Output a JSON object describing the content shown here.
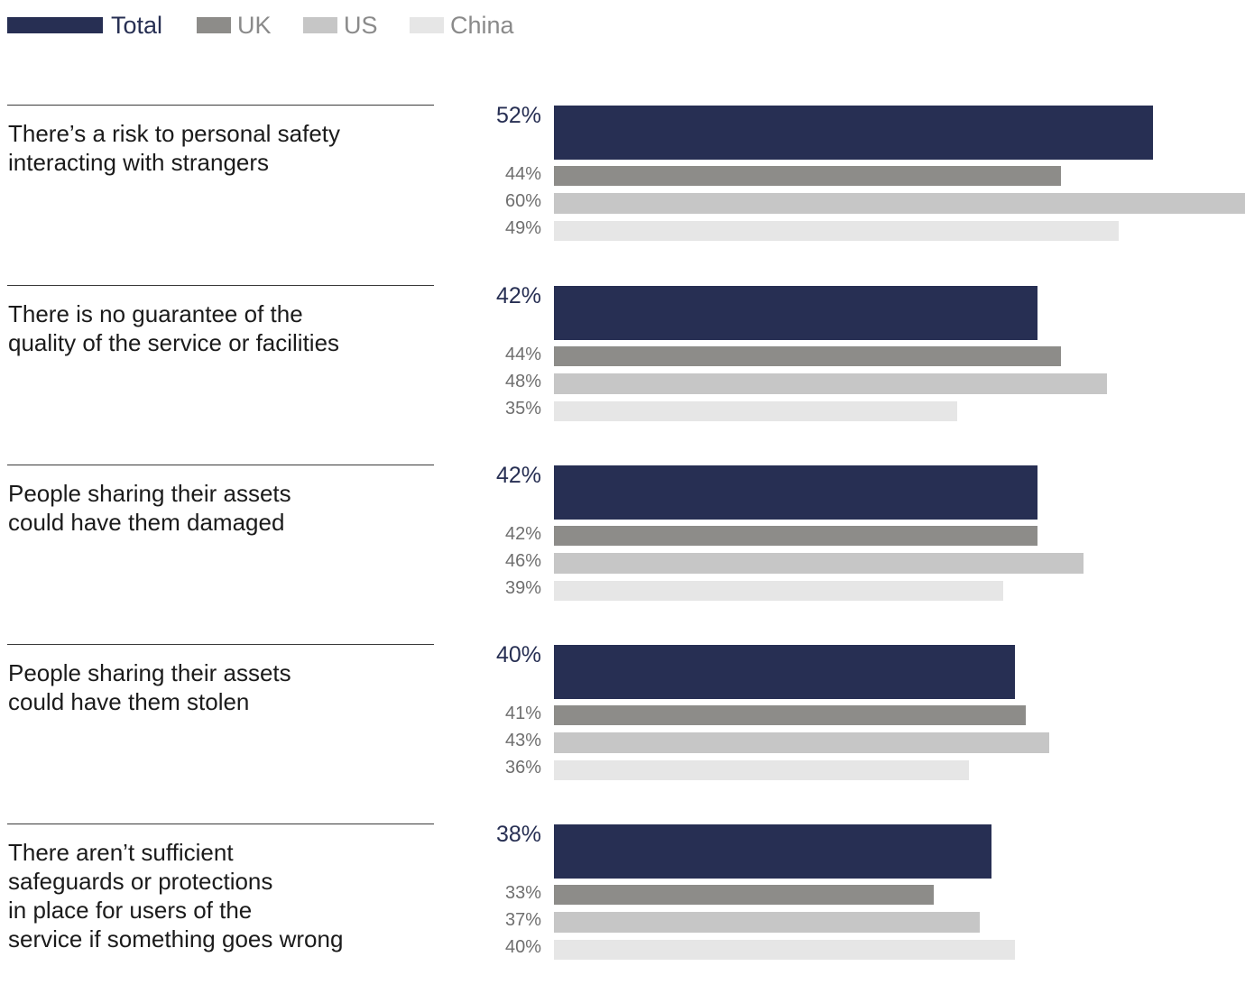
{
  "chart_data": {
    "type": "bar",
    "orientation": "horizontal",
    "title": "",
    "xlabel": "",
    "ylabel": "",
    "legend_position": "top-left",
    "grid": false,
    "value_suffix": "%",
    "xlim": [
      0,
      60
    ],
    "series": [
      {
        "name": "Total",
        "color": "#272f53"
      },
      {
        "name": "UK",
        "color": "#8d8c89"
      },
      {
        "name": "US",
        "color": "#c6c6c6"
      },
      {
        "name": "China",
        "color": "#e6e6e6"
      }
    ],
    "categories": [
      {
        "label": "There’s a risk to personal safety\ninteracting with strangers",
        "values": [
          52,
          44,
          60,
          49
        ],
        "value_labels": [
          "52%",
          "44%",
          "60%",
          "49%"
        ]
      },
      {
        "label": "There is no guarantee of the\nquality of the service or facilities",
        "values": [
          42,
          44,
          48,
          35
        ],
        "value_labels": [
          "42%",
          "44%",
          "48%",
          "35%"
        ]
      },
      {
        "label": "People sharing their assets\ncould have them damaged",
        "values": [
          42,
          42,
          46,
          39
        ],
        "value_labels": [
          "42%",
          "42%",
          "46%",
          "39%"
        ]
      },
      {
        "label": "People sharing their assets\ncould have them stolen",
        "values": [
          40,
          41,
          43,
          36
        ],
        "value_labels": [
          "40%",
          "41%",
          "43%",
          "36%"
        ]
      },
      {
        "label": "There aren’t sufficient\nsafeguards or protections\nin place for users of the\nservice if something goes wrong",
        "values": [
          38,
          33,
          37,
          40
        ],
        "value_labels": [
          "38%",
          "33%",
          "37%",
          "40%"
        ]
      }
    ]
  }
}
